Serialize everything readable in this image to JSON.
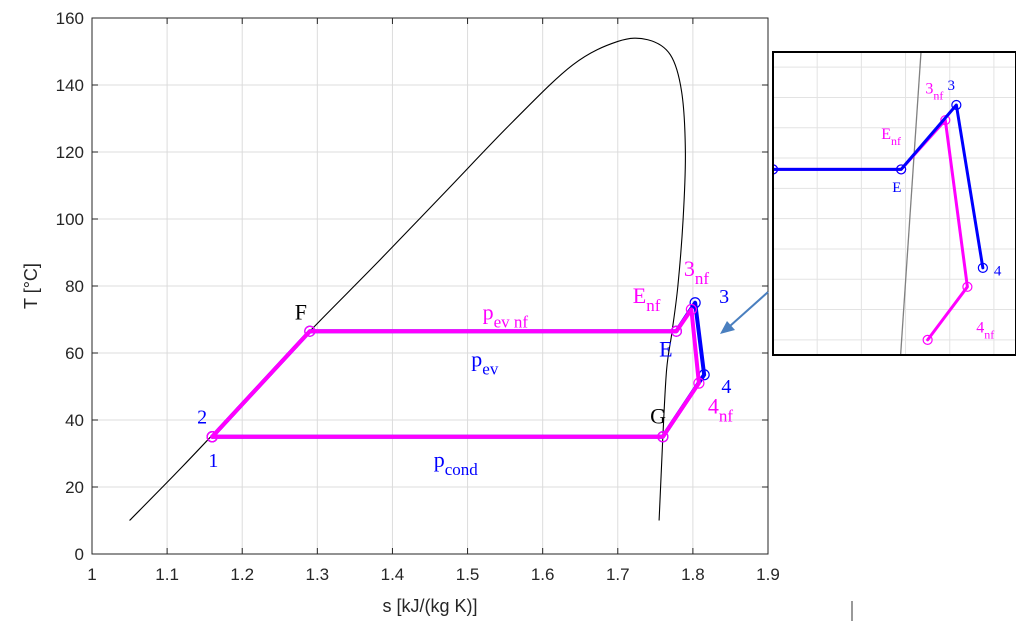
{
  "chart_data": {
    "type": "line",
    "xlabel": "s [kJ/(kg K)]",
    "ylabel": "T [°C]",
    "xlim": [
      1.0,
      1.9
    ],
    "ylim": [
      0,
      160
    ],
    "grid": true,
    "xticks": [
      "1",
      "1.1",
      "1.2",
      "1.3",
      "1.4",
      "1.5",
      "1.6",
      "1.7",
      "1.8",
      "1.9"
    ],
    "yticks": [
      "0",
      "20",
      "40",
      "60",
      "80",
      "100",
      "120",
      "140",
      "160"
    ],
    "colors": {
      "dome": "#000000",
      "cycle": "#0000ff",
      "cycle_nf": "#ff00ff",
      "arrow": "#4a7fbf"
    },
    "saturation_dome": {
      "x": [
        1.05,
        1.12,
        1.2,
        1.29,
        1.38,
        1.47,
        1.56,
        1.64,
        1.7,
        1.74,
        1.77,
        1.785,
        1.79,
        1.787,
        1.78,
        1.772,
        1.765,
        1.76,
        1.757,
        1.755
      ],
      "y": [
        10,
        26,
        45,
        66.5,
        87,
        108,
        129,
        146,
        153,
        153.5,
        149,
        138,
        120,
        100,
        80,
        66,
        55,
        35,
        20,
        10
      ]
    },
    "series": [
      {
        "color": "#0000ff",
        "x": [
          1.16,
          1.29,
          1.778,
          1.803,
          1.815,
          1.76,
          1.16
        ],
        "y": [
          35,
          66.5,
          66.5,
          75,
          53.5,
          35,
          35
        ]
      },
      {
        "color": "#ff00ff",
        "x": [
          1.16,
          1.29,
          1.778,
          1.798,
          1.808,
          1.76,
          1.16
        ],
        "y": [
          35,
          66.5,
          66.5,
          73,
          51,
          35,
          35
        ]
      }
    ],
    "annotations": [
      {
        "id": "2",
        "color": "#0000ff",
        "x": 1.14,
        "y": 39,
        "size": 20,
        "parts": [
          {
            "t": "2"
          }
        ]
      },
      {
        "id": "1",
        "color": "#0000ff",
        "x": 1.155,
        "y": 26,
        "size": 20,
        "parts": [
          {
            "t": "1"
          }
        ]
      },
      {
        "id": "F",
        "color": "#000000",
        "x": 1.27,
        "y": 70,
        "size": 22,
        "parts": [
          {
            "t": "F"
          }
        ]
      },
      {
        "id": "pevnf",
        "color": "#ff00ff",
        "x": 1.52,
        "y": 70,
        "size": 22,
        "parts": [
          {
            "t": "p"
          },
          {
            "t": "ev nf",
            "sub": true
          }
        ]
      },
      {
        "id": "pev",
        "color": "#0000ff",
        "x": 1.505,
        "y": 56,
        "size": 22,
        "parts": [
          {
            "t": "p"
          },
          {
            "t": "ev",
            "sub": true
          }
        ]
      },
      {
        "id": "pcond",
        "color": "#0000ff",
        "x": 1.455,
        "y": 26,
        "size": 22,
        "parts": [
          {
            "t": "p"
          },
          {
            "t": "cond",
            "sub": true
          }
        ]
      },
      {
        "id": "Enf",
        "color": "#ff00ff",
        "x": 1.72,
        "y": 75,
        "size": 22,
        "parts": [
          {
            "t": "E"
          },
          {
            "t": "nf",
            "sub": true
          }
        ]
      },
      {
        "id": "E",
        "color": "#0000ff",
        "x": 1.755,
        "y": 59,
        "size": 22,
        "parts": [
          {
            "t": "E"
          }
        ]
      },
      {
        "id": "3nf",
        "color": "#ff00ff",
        "x": 1.788,
        "y": 83,
        "size": 22,
        "parts": [
          {
            "t": "3"
          },
          {
            "t": "nf",
            "sub": true
          }
        ]
      },
      {
        "id": "3",
        "color": "#0000ff",
        "x": 1.835,
        "y": 75,
        "size": 20,
        "parts": [
          {
            "t": "3"
          }
        ]
      },
      {
        "id": "4",
        "color": "#0000ff",
        "x": 1.838,
        "y": 48,
        "size": 20,
        "parts": [
          {
            "t": "4"
          }
        ]
      },
      {
        "id": "4nf",
        "color": "#ff00ff",
        "x": 1.82,
        "y": 42,
        "size": 22,
        "parts": [
          {
            "t": "4"
          },
          {
            "t": "nf",
            "sub": true
          }
        ]
      },
      {
        "id": "G",
        "color": "#000000",
        "x": 1.743,
        "y": 39,
        "size": 22,
        "parts": [
          {
            "t": "G"
          }
        ]
      }
    ],
    "inset": {
      "dome_x": [
        1.775,
        1.79
      ],
      "dome_y": [
        60,
        85
      ],
      "series": [
        {
          "color": "#0000ff",
          "x": [
            1.72,
            1.778,
            1.803,
            1.815
          ],
          "y": [
            66.5,
            66.5,
            75,
            53.5
          ]
        },
        {
          "color": "#ff00ff",
          "x": [
            1.72,
            1.778,
            1.798,
            1.808,
            1.79
          ],
          "y": [
            66.5,
            66.5,
            73,
            51,
            44
          ]
        }
      ],
      "annotations": [
        {
          "id": "i3nf",
          "color": "#ff00ff",
          "x": 1.789,
          "y": 76.5,
          "size": 16,
          "parts": [
            {
              "t": "3"
            },
            {
              "t": "nf",
              "sub": true
            }
          ]
        },
        {
          "id": "i3",
          "color": "#0000ff",
          "x": 1.799,
          "y": 77,
          "size": 15,
          "parts": [
            {
              "t": "3"
            }
          ]
        },
        {
          "id": "iEnf",
          "color": "#ff00ff",
          "x": 1.769,
          "y": 70.5,
          "size": 16,
          "parts": [
            {
              "t": "E"
            },
            {
              "t": "nf",
              "sub": true
            }
          ]
        },
        {
          "id": "iE",
          "color": "#0000ff",
          "x": 1.774,
          "y": 63.5,
          "size": 15,
          "parts": [
            {
              "t": "E"
            }
          ]
        },
        {
          "id": "i4",
          "color": "#0000ff",
          "x": 1.82,
          "y": 52.5,
          "size": 15,
          "parts": [
            {
              "t": "4"
            }
          ]
        },
        {
          "id": "i4nf",
          "color": "#ff00ff",
          "x": 1.812,
          "y": 45,
          "size": 16,
          "parts": [
            {
              "t": "4"
            },
            {
              "t": "nf",
              "sub": true
            }
          ]
        }
      ]
    }
  }
}
